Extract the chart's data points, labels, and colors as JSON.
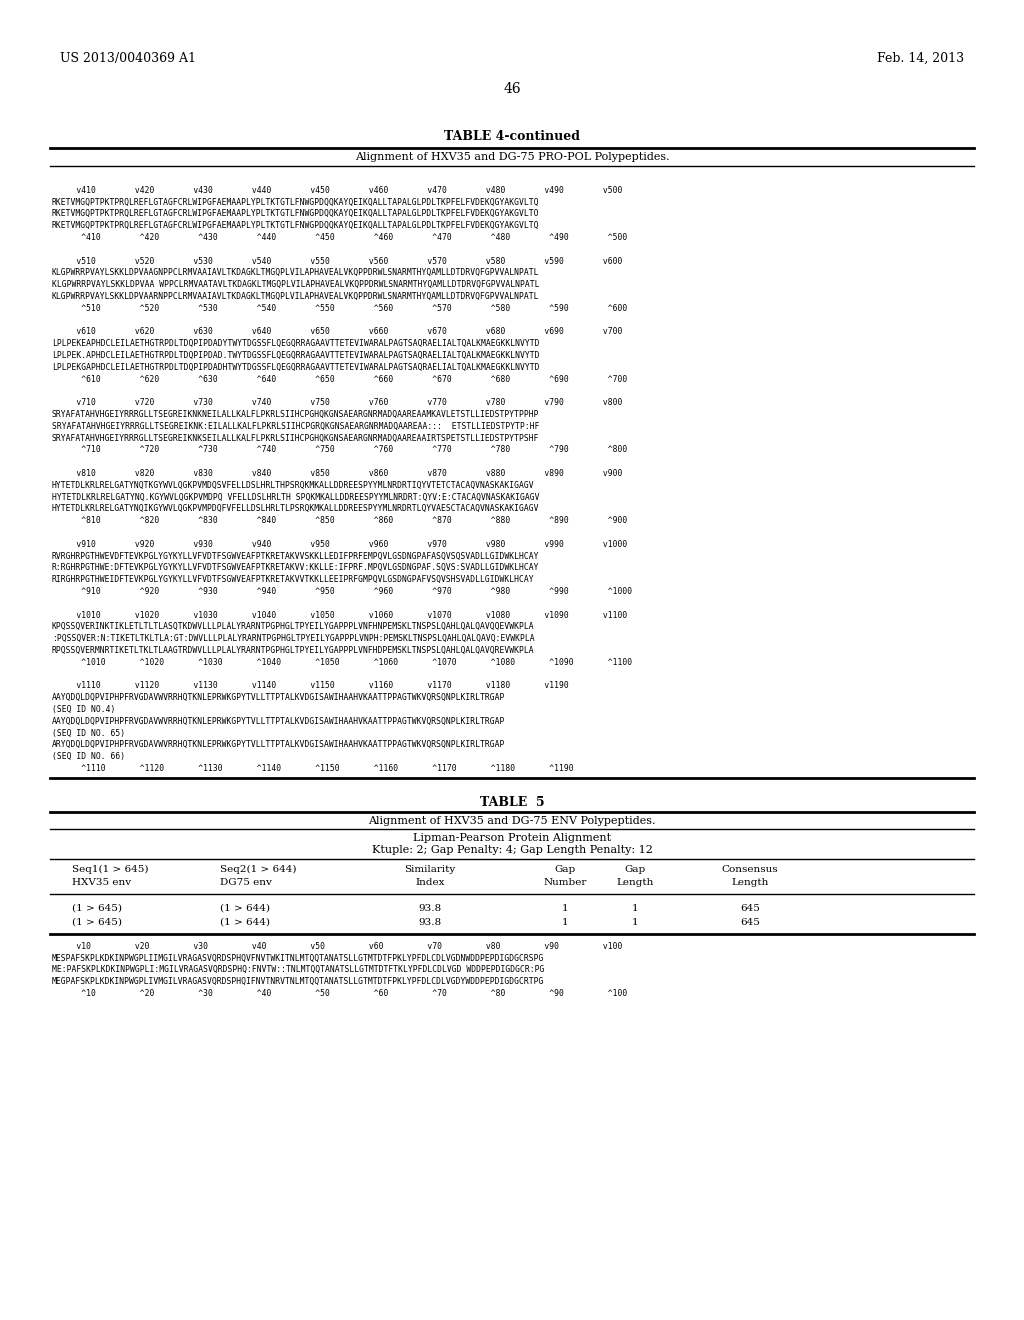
{
  "background_color": "#ffffff",
  "header_left": "US 2013/0040369 A1",
  "header_right": "Feb. 14, 2013",
  "page_number": "46",
  "table4_title": "TABLE 4-continued",
  "table4_subtitle": "Alignment of HXV35 and DG-75 PRO-POL Polypeptides.",
  "table5_title": "TABLE  5",
  "table5_subtitle": "Alignment of HXV35 and DG-75 ENV Polypeptides.",
  "table5_subsubtitle": "Lipman-Pearson Protein Alignment",
  "table5_params": "Ktuple: 2; Gap Penalty: 4; Gap Length Penalty: 12",
  "table5_col1_h1": "Seq1(1 > 645)",
  "table5_col1_h2": "HXV35 env",
  "table5_col2_h1": "Seq2(1 > 644)",
  "table5_col2_h2": "DG75 env",
  "table5_col3_h1": "Similarity",
  "table5_col3_h2": "Index",
  "table5_col4_h1": "Gap",
  "table5_col4_h2": "Number",
  "table5_col5_h1": "Gap",
  "table5_col5_h2": "Length",
  "table5_col6_h1": "Consensus",
  "table5_col6_h2": "Length",
  "table5_row1": [
    "(1 > 645)",
    "(1 > 644)",
    "93.8",
    "1",
    "1",
    "645"
  ],
  "table5_row2": [
    "(1 > 645)",
    "(1 > 644)",
    "93.8",
    "1",
    "1",
    "645"
  ],
  "content_lines": [
    "",
    "     v410        v420        v430        v440        v450        v460        v470        v480        v490        v500",
    "RKETVMGQPTPKTPRQLREFLGTAGFCRLWIPGFAEMAAPLYPLTKTGTLFNWGPDQQKAYQEIKQALLTAPALGLPDLTKPFELFVDEKQGYAKGVLTQ",
    "RKETVMGQPTPKTPRQLREFLGTAGFCRLWIPGFAEMAAPLYPLTKTGTLFNWGPDQQKAYQEIKQALLTAPALGLPDLTKPFELFVDEKQGYAKGVLTO",
    "RKETVMGQPTPKTPRQLREFLGTAGFCRLWIPGFAEMAAPLYPLTKTGTLFNWGPDQQKAYQEIKQALLTAPALGLPDLTKPFELFVDEKQGYAKGVLTQ",
    "      ^410        ^420        ^430        ^440        ^450        ^460        ^470        ^480        ^490        ^500",
    "",
    "     v510        v520        v530        v540        v550        v560        v570        v580        v590        v600",
    "KLGPWRRPVAYLSKKLDPVAAGNPPCLRMVAAIAVLTKDAGKLTMGQPLVILAPHAVEALVKQPPDRWLSNARMTHYQAMLLDTDRVQFGPVVALNPATL",
    "KLGPWRRPVAYLSKKLDPVAA WPPCLRMVAATAVLTKDAGKLTMGQPLVILAPHAVEALVKQPPDRWLSNARMTHYQAMLLDTDRVQFGPVVALNPATL",
    "KLGPWRRPVAYLSKKLDPVAARNPPCLRMVAAIAVLTKDAGKLTMGQPLVILAPHAVEALVKQPPDRWLSNARMTHYQAMLLDTDRVQFGPVVALNPATL",
    "      ^510        ^520        ^530        ^540        ^550        ^560        ^570        ^580        ^590        ^600",
    "",
    "     v610        v620        v630        v640        v650        v660        v670        v680        v690        v700",
    "LPLPEKEAPHDCLEILAETHGTRPDLTDQPIPDADYTWYTDGSSFLQEGQRRAGAAVTTETEVIWARALPAGTSAQRAELIALTQALKMAEGKKLNVYTD",
    "LPLPEK.APHDCLEILAETHGTRPDLTDQPIPDAD.TWYTDGSSFLQEGQRRAGAAVTTETEVIWARALPAGTSAQRAELIALTQALKMAEGKKLNVYTD",
    "LPLPEKGAPHDCLEILAETHGTRPDLTDQPIPDADHTWYTDGSSFLQEGQRRAGAAVTTETEVIWARALPAGTSAQRAELIALTQALKMAEGKKLNVYTD",
    "      ^610        ^620        ^630        ^640        ^650        ^660        ^670        ^680        ^690        ^700",
    "",
    "     v710        v720        v730        v740        v750        v760        v770        v780        v790        v800",
    "SRYAFATAHVHGEIYRRRGLLTSEGREIKNKNEILALLKALFLPKRLSIIHCPGHQKGNSAEARGNRMADQAAREAAMKAVLETSTLLIEDSTPYTPPHP",
    "SRYAFATAHVHGEIYRRRGLLTSEGREIKNK:EILALLKALFLPKRLSIIHCPGRQKGNSAEARGNRMADQAAREAA:::  ETSTLLIEDSTPYTP:HF",
    "SRYAFATAHVHGEIYRRRGLLTSEGREIKNKSEILALLKALFLPKRLSIIHCPGHQKGNSAEARGNRMADQAAREAAIRTSPETSTLLIEDSTPYTPSHF",
    "      ^710        ^720        ^730        ^740        ^750        ^760        ^770        ^780        ^790        ^800",
    "",
    "     v810        v820        v830        v840        v850        v860        v870        v880        v890        v900",
    "HYTETDLKRLRELGATYNQTKGYWVLQGKPVMDQSVFELLDSLHRLTHPSRQKMKALLDDREESPYYMLNRDRTIQYVTETCTACAQVNASKAKIGAGV",
    "HYTETDLKRLRELGATYNQ.KGYWVLQGKPVMDPQ VFELLDSLHRLTH SPQKMKALLDDREESPYYMLNRDRT:QYV:E:CTACAQVNASKAKIGAGV",
    "HYTETDLKRLRELGATYNQIKGYWVLQGKPVMPDQFVFELLDSLHRLTLPSRQKMKALLDDREESPYYMLNRDRTLQYVAESCTACAQVNASKAKIGAGV",
    "      ^810        ^820        ^830        ^840        ^850        ^860        ^870        ^880        ^890        ^900",
    "",
    "     v910        v920        v930        v940        v950        v960        v970        v980        v990        v1000",
    "RVRGHRPGTHWEVDFTEVKPGLYGYKYLLVFVDTFSGWVEAFPTKRETAKVVSKKLLEDIFPRFEMPQVLGSDNGPAFASQVSQSVADLLGIDWKLHCAY",
    "R:RGHRPGTHWE:DFTEVKPGLYGYKYLLVFVDTFSGWVEAFPTKRETAKVV:KKLLE:IFPRF.MPQVLGSDNGPAF.SQVS:SVADLLGIDWKLHCAY",
    "RIRGHRPGTHWEIDFTEVKPGLYGYKYLLVFVDTFSGWVEAFPTKRETAKVVTKKLLEEIPRFGMPQVLGSDNGPAFVSQVSHSVADLLGIDWKLHCAY",
    "      ^910        ^920        ^930        ^940        ^950        ^960        ^970        ^980        ^990        ^1000",
    "",
    "     v1010       v1020       v1030       v1040       v1050       v1060       v1070       v1080       v1090       v1100",
    "KPQSSQVERINKTIKLETLTLTLASQTKDWVLLLPLALYRARNTPGPHGLTPYEILYGAPPPLVNFHNPEMSKLTNSPSLQAHLQALQAVQQEVWKPLA",
    ":PQSSQVER:N:TIKETLTKLTLA:GT:DWVLLLPLALYRARNTPGPHGLTPYEILYGAPPPLVNPH:PEMSKLTNSPSLQAHLQALQAVQ:EVWKPLA",
    "RPQSSQVERMNRTIKETLTKLTLAAGTRDWVLLLPLALYRARNTPGPHGLTPYEILYGAPPPLVNFHDPEMSKLTNSPSLQAHLQALQAVQREVWKPLA",
    "      ^1010       ^1020       ^1030       ^1040       ^1050       ^1060       ^1070       ^1080       ^1090       ^1100",
    "",
    "     v1110       v1120       v1130       v1140       v1150       v1160       v1170       v1180       v1190",
    "AAYQDQLDQPVIPHPFRVGDAVWVRRHQTKNLEPRWKGPYTVLLTTPTALKVDGISAWIHAAHVKAATTPPAGTWKVQRSQNPLKIRLTRGAP",
    "(SEQ ID NO.4)",
    "AAYQDQLDQPVIPHPFRVGDAVWVRRHQTKNLEPRWKGPYTVLLTTPTALKVDGISAWIHAAHVKAATTPPAGTWKVQRSQNPLKIRLTRGAP",
    "(SEQ ID NO. 65)",
    "ARYQDQLDQPVIPHPFRVGDAVWVRRHQTKNLEPRWKGPYTVLLTTPTALKVDGISAWIHAAHVKAATTPPAGTWKVQRSQNPLKIRLTRGAP",
    "(SEQ ID NO. 66)",
    "      ^1110       ^1120       ^1130       ^1140       ^1150       ^1160       ^1170       ^1180       ^1190"
  ],
  "env_lines": [
    "     v10         v20         v30         v40         v50         v60         v70         v80         v90         v100",
    "MESPAFSKPLKDKINPWGPLIIMGILVRAGASVQRDSPHQVFNVTWKITNLMTQQTANATSLLGTMTDTFPKLYPFDLCDLVGDNWDDPEPDIGDGCRSPG",
    "ME:PAFSKPLKDKINPWGPLI:MGILVRAGASVQRDSPHQ:FNVTW::TNLMTQQTANATSLLGTMTDTFTKLYPFDLCDLVGD WDDPEPDIGDGCR:PG",
    "MEGPAFSKPLKDKINPWGPLIVMGILVRAGASVQRDSPHQIFNVTNRVTNLMTQQTANATSLLGTMTDTFPKLYPFDLCDLVGDYWDDPEPDIGDGCRTPG",
    "      ^10         ^20         ^30         ^40         ^50         ^60         ^70         ^80         ^90         ^100"
  ]
}
